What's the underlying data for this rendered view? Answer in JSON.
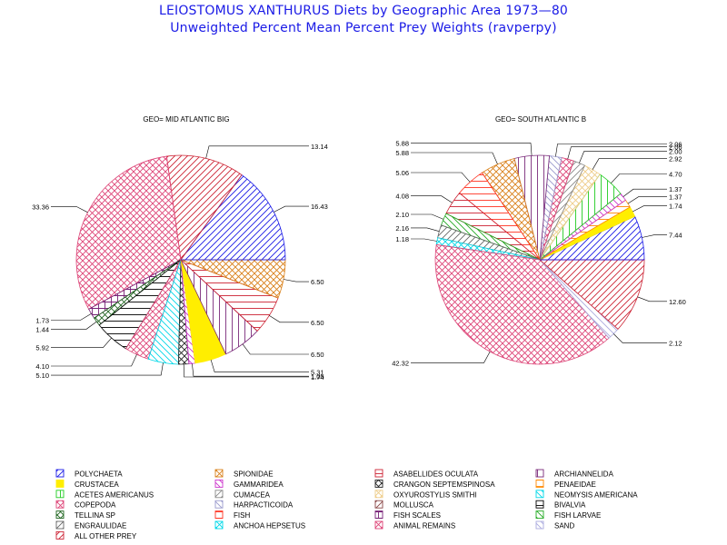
{
  "title": "LEIOSTOMUS XANTHURUS Diets by Geographic Area 1973—80",
  "subtitle": "Unweighted Percent Mean Percent Prey  Weights (ravperpy)",
  "legend_items": [
    {
      "label": "POLYCHAETA",
      "color": "#1a1ae6",
      "pattern": "diag-up"
    },
    {
      "label": "SPIONIDAE",
      "color": "#d9801a",
      "pattern": "cross"
    },
    {
      "label": "ASABELLIDES OCULATA",
      "color": "#cc2233",
      "pattern": "horiz"
    },
    {
      "label": "ARCHIANNELIDA",
      "color": "#7a2a7a",
      "pattern": "vert"
    },
    {
      "label": "CRUSTACEA",
      "color": "#ffee00",
      "pattern": "solid"
    },
    {
      "label": "GAMMARIDEA",
      "color": "#cc33cc",
      "pattern": "diag-down"
    },
    {
      "label": "CRANGON SEPTEMSPINOSA",
      "color": "#222222",
      "pattern": "cross"
    },
    {
      "label": "PENAEIDAE",
      "color": "#ff8800",
      "pattern": "horiz"
    },
    {
      "label": "ACETES AMERICANUS",
      "color": "#22cc22",
      "pattern": "vert"
    },
    {
      "label": "CUMACEA",
      "color": "#888888",
      "pattern": "diag-up"
    },
    {
      "label": "OXYUROSTYLIS SMITHI",
      "color": "#eecc88",
      "pattern": "cross"
    },
    {
      "label": "NEOMYSIS AMERICANA",
      "color": "#00d8e8",
      "pattern": "diag-down"
    },
    {
      "label": "COPEPODA",
      "color": "#dd4477",
      "pattern": "cross"
    },
    {
      "label": "HARPACTICOIDA",
      "color": "#9999cc",
      "pattern": "diag-down"
    },
    {
      "label": "MOLLUSCA",
      "color": "#884444",
      "pattern": "diag-up"
    },
    {
      "label": "BIVALVIA",
      "color": "#000000",
      "pattern": "horiz"
    },
    {
      "label": "TELLINA SP",
      "color": "#226622",
      "pattern": "cross"
    },
    {
      "label": "FISH",
      "color": "#ff3322",
      "pattern": "horiz"
    },
    {
      "label": "FISH SCALES",
      "color": "#772277",
      "pattern": "grid"
    },
    {
      "label": "FISH LARVAE",
      "color": "#22aa22",
      "pattern": "diag-down"
    },
    {
      "label": "ENGRAULIDAE",
      "color": "#666666",
      "pattern": "diag-up"
    },
    {
      "label": "ANCHOA HEPSETUS",
      "color": "#00d8e8",
      "pattern": "cross"
    },
    {
      "label": "ANIMAL REMAINS",
      "color": "#dd4477",
      "pattern": "ring"
    },
    {
      "label": "SAND",
      "color": "#aaaadd",
      "pattern": "diag-down"
    },
    {
      "label": "ALL OTHER PREY",
      "color": "#cc2233",
      "pattern": "diag-up"
    }
  ],
  "chart_data": [
    {
      "type": "pie",
      "title": "GEO= MID ATLANTIC BIG",
      "slices": [
        {
          "category": "POLYCHAETA",
          "value": 16.43,
          "label": "16.43"
        },
        {
          "category": "ALL OTHER PREY",
          "value": 13.14,
          "label": "13.14"
        },
        {
          "category": "ANIMAL REMAINS",
          "value": 33.36,
          "label": "33.36"
        },
        {
          "category": "FISH SCALES",
          "value": 1.73,
          "label": "1.73"
        },
        {
          "category": "TELLINA SP",
          "value": 1.44,
          "label": "1.44"
        },
        {
          "category": "BIVALVIA",
          "value": 5.92,
          "label": "5.92"
        },
        {
          "category": "COPEPODA",
          "value": 4.1,
          "label": "4.10"
        },
        {
          "category": "NEOMYSIS AMERICANA",
          "value": 5.1,
          "label": "5.10"
        },
        {
          "category": "CRANGON SEPTEMSPINOSA",
          "value": 1.74,
          "label": "1.74"
        },
        {
          "category": "GAMMARIDEA",
          "value": 1.05,
          "label": "1.05"
        },
        {
          "category": "CRUSTACEA",
          "value": 5.31,
          "label": "5.31"
        },
        {
          "category": "ARCHIANNELIDA",
          "value": 6.5,
          "label": "6.50"
        },
        {
          "category": "ASABELLIDES OCULATA",
          "value": 6.5,
          "label": "6.50"
        },
        {
          "category": "SPIONIDAE",
          "value": 6.5,
          "label": "6.50"
        }
      ]
    },
    {
      "type": "pie",
      "title": "GEO= SOUTH ATLANTIC B",
      "slices": [
        {
          "category": "POLYCHAETA",
          "value": 7.44,
          "label": "7.44"
        },
        {
          "category": "CRUSTACEA",
          "value": 1.74,
          "label": "1.74"
        },
        {
          "category": "PENAEIDAE",
          "value": 1.37,
          "label": "1.37"
        },
        {
          "category": "GAMMARIDEA",
          "value": 1.37,
          "label": "1.37"
        },
        {
          "category": "ACETES AMERICANUS",
          "value": 4.7,
          "label": "4.70"
        },
        {
          "category": "OXYUROSTYLIS SMITHI",
          "value": 2.92,
          "label": "2.92"
        },
        {
          "category": "CUMACEA",
          "value": 2.0,
          "label": "2.00"
        },
        {
          "category": "COPEPODA",
          "value": 2.06,
          "label": "2.06"
        },
        {
          "category": "HARPACTICOIDA",
          "value": 2.06,
          "label": "2.06"
        },
        {
          "category": "ARCHIANNELIDA",
          "value": 5.88,
          "label": "5.88"
        },
        {
          "category": "SPIONIDAE",
          "value": 5.88,
          "label": "5.88"
        },
        {
          "category": "FISH",
          "value": 5.06,
          "label": "5.06"
        },
        {
          "category": "ASABELLIDES OCULATA",
          "value": 4.08,
          "label": "4.08"
        },
        {
          "category": "FISH LARVAE",
          "value": 2.1,
          "label": "2.10"
        },
        {
          "category": "ENGRAULIDAE",
          "value": 2.16,
          "label": "2.16"
        },
        {
          "category": "ANCHOA HEPSETUS",
          "value": 1.18,
          "label": "1.18"
        },
        {
          "category": "ANIMAL REMAINS",
          "value": 42.32,
          "label": "42.32"
        },
        {
          "category": "SAND",
          "value": 2.12,
          "label": "2.12"
        },
        {
          "category": "ALL OTHER PREY",
          "value": 12.6,
          "label": "12.60"
        }
      ]
    }
  ]
}
